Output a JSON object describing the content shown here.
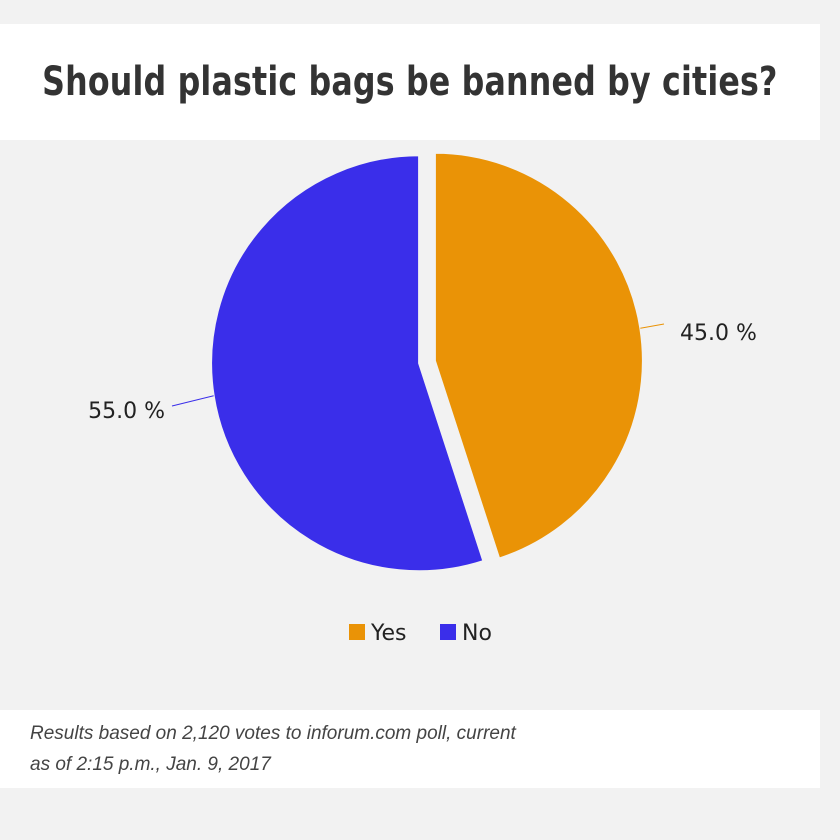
{
  "chart_data": {
    "type": "pie",
    "title": "Should plastic bags be banned by cities?",
    "slices": [
      {
        "name": "Yes",
        "value": 45.0,
        "label": "45.0 %",
        "color": "#ea9306"
      },
      {
        "name": "No",
        "value": 55.0,
        "label": "55.0 %",
        "color": "#3a2eea"
      }
    ],
    "legend": {
      "placement": "bottom",
      "entries": [
        "Yes",
        "No"
      ]
    }
  },
  "footnote": {
    "line1": "Results based on 2,120 votes to inforum.com poll, current",
    "line2": "as of 2:15 p.m., Jan. 9, 2017"
  },
  "colors": {
    "background": "#f2f2f2",
    "panel": "#ffffff"
  }
}
